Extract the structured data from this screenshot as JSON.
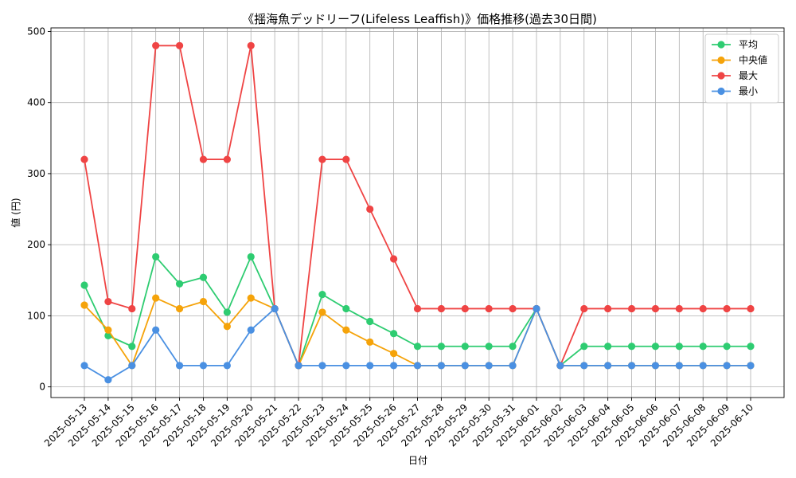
{
  "chart_data": {
    "type": "line",
    "title": "《揺海魚デッドリーフ(Lifeless Leaffish)》価格推移(過去30日間)",
    "xlabel": "日付",
    "ylabel": "値 (円)",
    "ylim": [
      -15,
      505
    ],
    "yticks": [
      0,
      100,
      200,
      300,
      400,
      500
    ],
    "grid": true,
    "legend_position": "top-right",
    "categories": [
      "2025-05-13",
      "2025-05-14",
      "2025-05-15",
      "2025-05-16",
      "2025-05-17",
      "2025-05-18",
      "2025-05-19",
      "2025-05-20",
      "2025-05-21",
      "2025-05-22",
      "2025-05-23",
      "2025-05-24",
      "2025-05-25",
      "2025-05-26",
      "2025-05-27",
      "2025-05-28",
      "2025-05-29",
      "2025-05-30",
      "2025-05-31",
      "2025-06-01",
      "2025-06-02",
      "2025-06-03",
      "2025-06-04",
      "2025-06-05",
      "2025-06-06",
      "2025-06-07",
      "2025-06-08",
      "2025-06-09",
      "2025-06-10"
    ],
    "series": [
      {
        "name": "平均",
        "color": "#2ecc71",
        "values": [
          143,
          72,
          57,
          183,
          145,
          154,
          105,
          183,
          110,
          30,
          130,
          110,
          92,
          75,
          57,
          57,
          57,
          57,
          57,
          110,
          30,
          57,
          57,
          57,
          57,
          57,
          57,
          57,
          57
        ]
      },
      {
        "name": "中央値",
        "color": "#f5a30a",
        "values": [
          115,
          80,
          30,
          125,
          110,
          120,
          85,
          125,
          110,
          30,
          105,
          80,
          63,
          47,
          30,
          30,
          30,
          30,
          30,
          110,
          30,
          30,
          30,
          30,
          30,
          30,
          30,
          30,
          30
        ]
      },
      {
        "name": "最大",
        "color": "#ef4444",
        "values": [
          320,
          120,
          110,
          480,
          480,
          320,
          320,
          480,
          110,
          30,
          320,
          320,
          250,
          180,
          110,
          110,
          110,
          110,
          110,
          110,
          30,
          110,
          110,
          110,
          110,
          110,
          110,
          110,
          110
        ]
      },
      {
        "name": "最小",
        "color": "#4a90e2",
        "values": [
          30,
          10,
          30,
          80,
          30,
          30,
          30,
          80,
          110,
          30,
          30,
          30,
          30,
          30,
          30,
          30,
          30,
          30,
          30,
          110,
          30,
          30,
          30,
          30,
          30,
          30,
          30,
          30,
          30
        ]
      }
    ]
  }
}
